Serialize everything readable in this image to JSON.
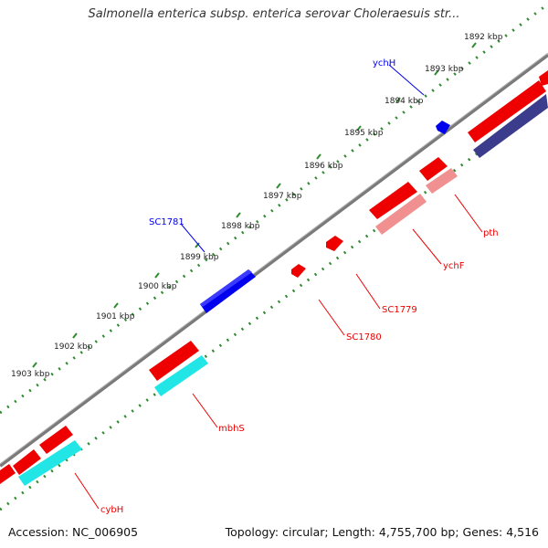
{
  "title": "Salmonella enterica subsp. enterica serovar Choleraesuis str...",
  "footer": {
    "accession": "Accession: NC_006905",
    "summary": "Topology: circular; Length: 4,755,700 bp; Genes: 4,516"
  },
  "colors": {
    "backbone": "#7a7a7a",
    "ruler": "#2e8b2e",
    "forward_gene": "#ee0000",
    "reverse_gene": "#ee0000",
    "blue_gene": "#0000ee",
    "cyan_cds": "#22e6e6",
    "pink_cds": "#f09090",
    "navy_cds": "#3c3c8c"
  },
  "ticks": [
    "1892 kbp",
    "1893 kbp",
    "1894 kbp",
    "1895 kbp",
    "1896 kbp",
    "1897 kbp",
    "1898 kbp",
    "1899 kbp",
    "1900 kbp",
    "1901 kbp",
    "1902 kbp",
    "1903 kbp"
  ],
  "gene_labels": {
    "ychH": "ychH",
    "SC1781": "SC1781",
    "pth": "pth",
    "ychF": "ychF",
    "SC1779": "SC1779",
    "SC1780": "SC1780",
    "mbhS": "mbhS",
    "cybH": "cybH"
  }
}
